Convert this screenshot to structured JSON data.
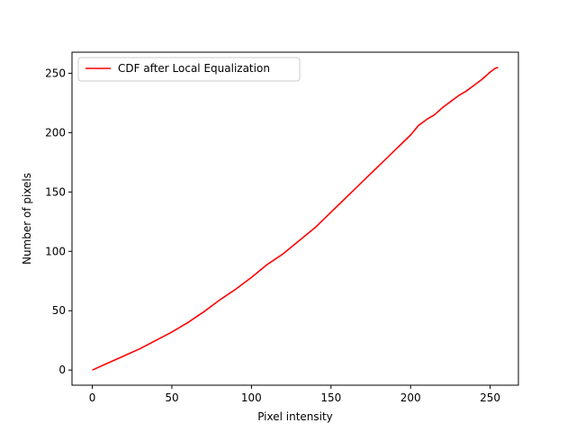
{
  "chart_data": {
    "type": "line",
    "title": "",
    "xlabel": "Pixel intensity",
    "ylabel": "Number of pixels",
    "xlim": [
      -12.75,
      267.75
    ],
    "ylim": [
      -12.75,
      267.75
    ],
    "xticks": [
      0,
      50,
      100,
      150,
      200,
      250
    ],
    "yticks": [
      0,
      50,
      100,
      150,
      200,
      250
    ],
    "grid": false,
    "legend_position": "upper-left",
    "series": [
      {
        "name": "CDF after Local Equalization",
        "color": "#ff0000",
        "x": [
          0,
          10,
          20,
          30,
          40,
          50,
          60,
          70,
          80,
          90,
          100,
          110,
          120,
          130,
          140,
          150,
          160,
          170,
          180,
          190,
          200,
          205,
          210,
          215,
          220,
          225,
          230,
          235,
          240,
          245,
          250,
          253,
          255
        ],
        "y": [
          0,
          6,
          12,
          18,
          25,
          32,
          40,
          49,
          59,
          68,
          78,
          89,
          98,
          109,
          120,
          133,
          146,
          159,
          172,
          185,
          198,
          206,
          211,
          215,
          221,
          226,
          231,
          235,
          240,
          245,
          251,
          254,
          255
        ]
      }
    ]
  }
}
